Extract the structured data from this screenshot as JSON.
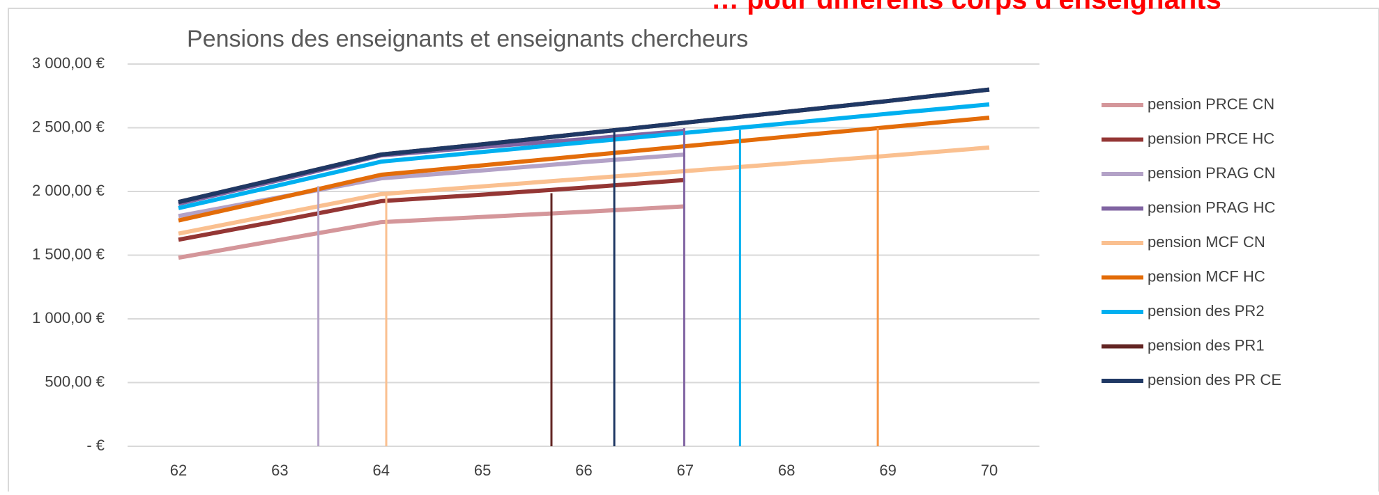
{
  "chart_data": {
    "type": "line",
    "title": "Pensions des enseignants et enseignants chercheurs",
    "annotation": "… pour différents corps d'enseignants",
    "x": [
      62,
      63,
      64,
      65,
      66,
      67,
      68,
      69,
      70
    ],
    "xlim": [
      62,
      70
    ],
    "xticks": [
      62,
      63,
      64,
      65,
      66,
      67,
      68,
      69,
      70
    ],
    "ylim": [
      0,
      3000
    ],
    "yticks": [
      {
        "value": 0,
        "label": "-  €"
      },
      {
        "value": 500,
        "label": "500,00 €"
      },
      {
        "value": 1000,
        "label": "1 000,00 €"
      },
      {
        "value": 1500,
        "label": "1 500,00 €"
      },
      {
        "value": 2000,
        "label": "2 000,00 €"
      },
      {
        "value": 2500,
        "label": "2 500,00 €"
      },
      {
        "value": 3000,
        "label": "3 000,00 €"
      }
    ],
    "grid": true,
    "legend": "right",
    "series": [
      {
        "name": "pension PRCE CN",
        "color": "#d4969a",
        "values": [
          1480,
          1620,
          1759,
          1800,
          1840,
          1883,
          null,
          null,
          null
        ]
      },
      {
        "name": "pension PRCE HC",
        "color": "#943634",
        "values": [
          1621,
          1770,
          1924,
          1975,
          2030,
          2090,
          null,
          null,
          null
        ]
      },
      {
        "name": "pension PRAG CN",
        "color": "#b3a2c7",
        "values": [
          1807,
          1955,
          2103,
          2165,
          2230,
          2290,
          null,
          null,
          null
        ]
      },
      {
        "name": "pension PRAG HC",
        "color": "#8064a2",
        "values": [
          1903,
          2090,
          2283,
          2350,
          2410,
          2476,
          null,
          null,
          null
        ]
      },
      {
        "name": "pension MCF CN",
        "color": "#fac090",
        "values": [
          1669,
          1825,
          1979,
          2040,
          2100,
          2160,
          2220,
          2280,
          2345
        ]
      },
      {
        "name": "pension MCF HC",
        "color": "#e36c09",
        "values": [
          1772,
          1950,
          2131,
          2205,
          2280,
          2355,
          2430,
          2505,
          2579
        ]
      },
      {
        "name": "pension des PR2",
        "color": "#00b0f0",
        "values": [
          1869,
          2050,
          2234,
          2310,
          2385,
          2460,
          2535,
          2610,
          2683
        ]
      },
      {
        "name": "pension des PR1",
        "color": "#632523",
        "values": [
          1917,
          2103,
          2290,
          2370,
          2455,
          2540,
          2625,
          2710,
          2800
        ]
      },
      {
        "name": "pension des PR CE",
        "color": "#1f3864",
        "values": [
          1917,
          2103,
          2290,
          2370,
          2455,
          2540,
          2625,
          2710,
          2800
        ]
      }
    ],
    "reference_lines": [
      {
        "x": 63.38,
        "top": 2041,
        "color": "#b3a2c7"
      },
      {
        "x": 64.05,
        "top": 1979,
        "color": "#fac090"
      },
      {
        "x": 65.68,
        "top": 1986,
        "color": "#632523"
      },
      {
        "x": 66.3,
        "top": 2497,
        "color": "#1f3864"
      },
      {
        "x": 66.99,
        "top": 2497,
        "color": "#8064a2"
      },
      {
        "x": 67.54,
        "top": 2483,
        "color": "#00b0f0"
      },
      {
        "x": 68.9,
        "top": 2497,
        "color": "#f79646"
      }
    ]
  }
}
